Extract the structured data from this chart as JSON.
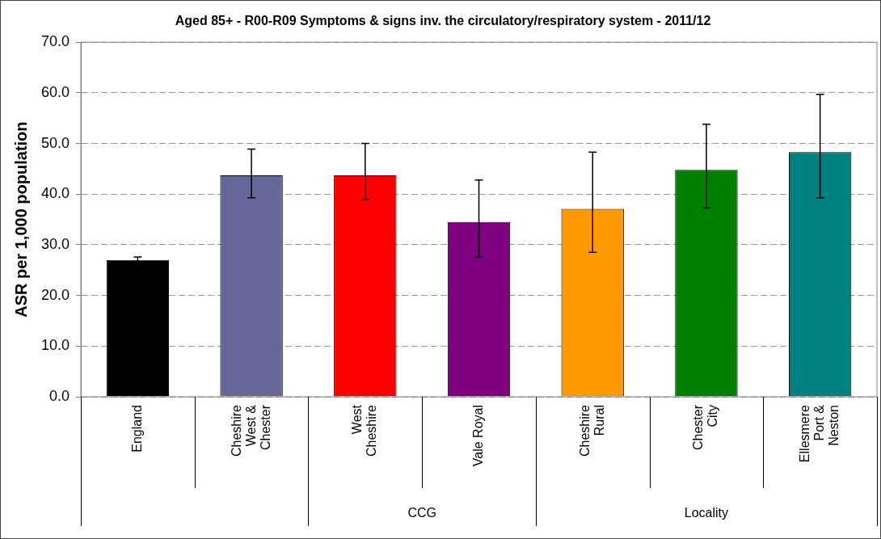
{
  "chart_data": {
    "type": "bar",
    "title": "Aged 85+ - R00-R09 Symptoms & signs inv. the circulatory/respiratory system - 2011/12",
    "ylabel": "ASR per 1,000 population",
    "categories": [
      "England",
      "Cheshire West & Chester",
      "West Cheshire",
      "Vale Royal",
      "Cheshire Rural",
      "Chester City",
      "Ellesmere Port & Neston"
    ],
    "values": [
      27.0,
      43.7,
      43.7,
      34.5,
      37.1,
      44.8,
      48.3
    ],
    "colors": [
      "#000000",
      "#666699",
      "#ff0000",
      "#800080",
      "#ff9900",
      "#008000",
      "#008080"
    ],
    "errors": [
      [
        26.6,
        27.6
      ],
      [
        39.3,
        48.9
      ],
      [
        38.9,
        50.0
      ],
      [
        27.6,
        42.8
      ],
      [
        28.5,
        48.3
      ],
      [
        37.3,
        53.8
      ],
      [
        39.3,
        59.7
      ]
    ],
    "annotations": [
      "CCG",
      "Locality"
    ],
    "ylim": [
      0,
      70
    ],
    "yticks": [
      {
        "value": 0,
        "label": "0.0"
      },
      {
        "value": 10,
        "label": "10.0"
      },
      {
        "value": 20,
        "label": "20.0"
      },
      {
        "value": 30,
        "label": "30.0"
      },
      {
        "value": 40,
        "label": "40.0"
      },
      {
        "value": 50,
        "label": "50.0"
      },
      {
        "value": 60,
        "label": "60.0"
      },
      {
        "value": 70,
        "label": "70.0"
      }
    ],
    "grid": "y",
    "legend": false
  }
}
